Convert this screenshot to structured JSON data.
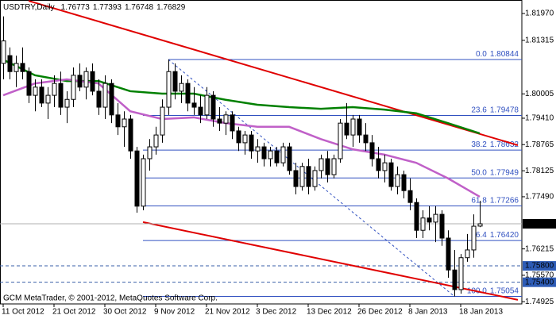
{
  "chart_data": {
    "type": "candlestick",
    "title": "USDTRY,Daily",
    "footer": "GCM MetaTrader, © 2001-2012, MetaQuotes Software Corp.",
    "categories": [
      "11 Oct 2012",
      null,
      null,
      null,
      null,
      null,
      null,
      null,
      "21 Oct 2012",
      null,
      null,
      null,
      null,
      null,
      null,
      null,
      "30 Oct 2012",
      null,
      null,
      null,
      null,
      null,
      null,
      null,
      "9 Nov 2012",
      null,
      null,
      null,
      null,
      null,
      null,
      null,
      "21 Nov 2012",
      null,
      null,
      null,
      null,
      null,
      null,
      null,
      "3 Dec 2012",
      null,
      null,
      null,
      null,
      null,
      null,
      null,
      "13 Dec 2012",
      null,
      null,
      null,
      null,
      null,
      null,
      null,
      "26 Dec 2012",
      null,
      null,
      null,
      null,
      null,
      null,
      null,
      "8 Jan 2013",
      null,
      null,
      null,
      null,
      null,
      null,
      null,
      "18 Jan 2013",
      null,
      null,
      null
    ],
    "open": [
      1.8075,
      1.8094,
      1.8055,
      1.8075,
      1.8055,
      1.7997,
      1.8017,
      1.7978,
      1.7997,
      1.8026,
      1.7968,
      1.7987,
      1.8046,
      1.8017,
      1.8055,
      1.8007,
      1.7968,
      1.8026,
      1.7949,
      1.792,
      1.7939,
      1.7861,
      1.7726,
      1.7842,
      1.7871,
      1.79,
      1.7968,
      1.8055,
      1.8007,
      1.8026,
      1.7978,
      1.7968,
      1.7949,
      1.7997,
      1.7939,
      1.7929,
      1.7949,
      1.791,
      1.7881,
      1.79,
      1.7861,
      1.7871,
      1.7842,
      1.7861,
      1.7832,
      1.7871,
      1.7813,
      1.7774,
      1.7823,
      1.7774,
      1.7813,
      1.7842,
      1.7803,
      1.7842,
      1.7929,
      1.79,
      1.7939,
      1.79,
      1.7881,
      1.7842,
      1.7813,
      1.7832,
      1.7774,
      1.7803,
      1.7764,
      1.7735,
      1.7667,
      1.7697,
      1.7687,
      1.7706,
      1.7648,
      1.757,
      1.7522,
      1.76,
      1.7619,
      1.76773
    ],
    "high": [
      1.819,
      1.8114,
      1.8094,
      1.8114,
      1.8065,
      1.8036,
      1.8036,
      1.8017,
      1.8046,
      1.8055,
      1.8007,
      1.8065,
      1.8075,
      1.8065,
      1.8075,
      1.8036,
      1.8046,
      1.8036,
      1.7978,
      1.7958,
      1.7949,
      1.7871,
      1.7852,
      1.789,
      1.792,
      1.7987,
      1.80844,
      1.8075,
      1.8046,
      1.8036,
      1.8017,
      1.7997,
      1.8017,
      1.8007,
      1.7968,
      1.7958,
      1.7958,
      1.792,
      1.791,
      1.791,
      1.789,
      1.7881,
      1.7871,
      1.7871,
      1.7881,
      1.7881,
      1.7832,
      1.7832,
      1.7842,
      1.7823,
      1.7852,
      1.7861,
      1.7852,
      1.7939,
      1.7978,
      1.7949,
      1.7949,
      1.7929,
      1.79,
      1.7871,
      1.7852,
      1.7842,
      1.7823,
      1.7813,
      1.7794,
      1.7745,
      1.7716,
      1.7726,
      1.7726,
      1.7716,
      1.7667,
      1.7619,
      1.7609,
      1.7658,
      1.7706,
      1.77393
    ],
    "low": [
      1.8036,
      1.8036,
      1.8017,
      1.8036,
      1.7978,
      1.7958,
      1.7968,
      1.7939,
      1.7968,
      1.7949,
      1.7929,
      1.7968,
      1.8007,
      1.7987,
      1.7997,
      1.7949,
      1.7939,
      1.7929,
      1.79,
      1.7871,
      1.7842,
      1.771,
      1.7716,
      1.7813,
      1.7852,
      1.7881,
      1.7949,
      1.7987,
      1.7978,
      1.7958,
      1.7949,
      1.7929,
      1.7939,
      1.792,
      1.791,
      1.79,
      1.789,
      1.7861,
      1.7852,
      1.7842,
      1.7832,
      1.7823,
      1.7823,
      1.7823,
      1.7823,
      1.7803,
      1.7755,
      1.7764,
      1.7755,
      1.7764,
      1.7794,
      1.7784,
      1.7794,
      1.7832,
      1.789,
      1.7871,
      1.7881,
      1.7861,
      1.7823,
      1.7794,
      1.7784,
      1.7764,
      1.7755,
      1.7745,
      1.7716,
      1.7648,
      1.7648,
      1.7667,
      1.7638,
      1.7629,
      1.7551,
      1.75054,
      1.7512,
      1.759,
      1.76,
      1.76748
    ],
    "close": [
      1.813,
      1.8055,
      1.8075,
      1.8055,
      1.7997,
      1.8017,
      1.7978,
      1.7997,
      1.8026,
      1.7968,
      1.7987,
      1.8046,
      1.8017,
      1.8055,
      1.8007,
      1.7968,
      1.8026,
      1.7949,
      1.792,
      1.7939,
      1.7861,
      1.7726,
      1.7842,
      1.7871,
      1.79,
      1.7968,
      1.8055,
      1.8007,
      1.8026,
      1.7978,
      1.7968,
      1.7949,
      1.7997,
      1.7939,
      1.7929,
      1.7949,
      1.791,
      1.7881,
      1.79,
      1.7861,
      1.7871,
      1.7842,
      1.7861,
      1.7832,
      1.7871,
      1.7813,
      1.7774,
      1.7823,
      1.7774,
      1.7813,
      1.7842,
      1.7803,
      1.7842,
      1.7929,
      1.79,
      1.7939,
      1.79,
      1.7881,
      1.7842,
      1.7813,
      1.7832,
      1.7774,
      1.7803,
      1.7764,
      1.7735,
      1.7667,
      1.7697,
      1.7687,
      1.7706,
      1.7648,
      1.757,
      1.7522,
      1.76,
      1.7619,
      1.7677,
      1.76829
    ],
    "up_color": "#ffffff",
    "down_color": "#000000",
    "ylim": [
      1.7487,
      1.823
    ],
    "yticks": [
      {
        "value": 1.8197,
        "label": "1.81970"
      },
      1.81315,
      1.80005,
      {
        "value": 1.7941,
        "label": "1.79410"
      },
      1.78765,
      1.78125,
      {
        "value": 1.7749,
        "label": "1.77490"
      },
      1.76215,
      {
        "value": 1.7557,
        "label": "1.75570"
      },
      1.74925
    ],
    "indicators": [
      {
        "color": "#008000",
        "x": [
          0,
          5,
          10,
          15,
          20,
          25,
          30,
          35,
          40,
          45,
          50,
          55,
          60,
          65,
          70,
          75
        ],
        "values": [
          1.8084,
          1.8046,
          1.8032,
          1.8032,
          1.8007,
          1.8001,
          1.8001,
          1.7986,
          1.7974,
          1.7968,
          1.7964,
          1.7968,
          1.7962,
          1.7953,
          1.7929,
          1.7904
        ]
      },
      {
        "color": "#c060c8",
        "x": [
          0,
          5,
          10,
          15,
          20,
          25,
          30,
          35,
          40,
          45,
          50,
          55,
          60,
          65,
          70,
          75
        ],
        "values": [
          1.7997,
          1.8026,
          1.8036,
          1.8026,
          1.7958,
          1.7939,
          1.7943,
          1.7929,
          1.792,
          1.792,
          1.789,
          1.7865,
          1.7852,
          1.7832,
          1.7794,
          1.7749
        ]
      }
    ],
    "trendlines": [
      {
        "color": "#e00000",
        "x": [
          4,
          81
        ],
        "values": [
          1.8228,
          1.7875
        ]
      },
      {
        "color": "#e00000",
        "x": [
          22,
          81
        ],
        "values": [
          1.7687,
          1.7497
        ]
      }
    ],
    "fibo": {
      "color": "#3050c0",
      "levels": [
        {
          "ratio": "0.0",
          "value": 1.80844
        },
        {
          "ratio": "23.6",
          "value": 1.79478
        },
        {
          "ratio": "38.2",
          "value": 1.78632
        },
        {
          "ratio": "50.0",
          "value": 1.77949
        },
        {
          "ratio": "61.8",
          "value": 1.77266
        },
        {
          "ratio": "76.4",
          "value": 1.7642,
          "label": "1.76420"
        },
        {
          "ratio": "100.0",
          "value": 1.75054
        }
      ]
    },
    "hlines": [
      {
        "value": 1.758,
        "label": "1.75800"
      },
      {
        "value": 1.754,
        "label": "1.75400"
      }
    ]
  }
}
